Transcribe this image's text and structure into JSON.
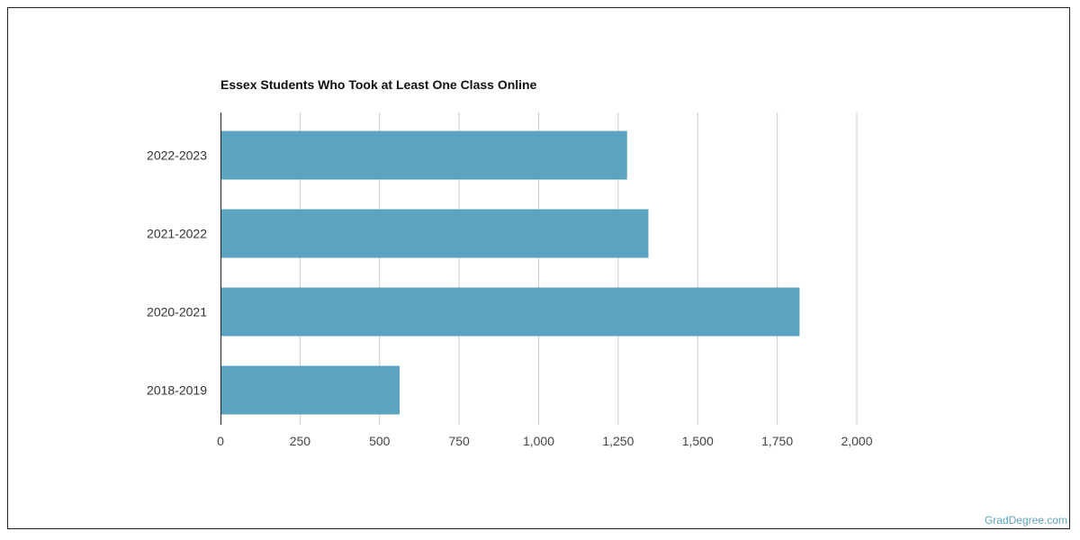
{
  "chart_data": {
    "type": "bar",
    "orientation": "horizontal",
    "title": "Essex Students Who Took at Least One Class Online",
    "xlabel": "",
    "ylabel": "",
    "categories": [
      "2022-2023",
      "2021-2022",
      "2020-2021",
      "2018-2019"
    ],
    "values": [
      1278,
      1345,
      1820,
      563
    ],
    "xlim": [
      0,
      2000
    ],
    "xticks": [
      0,
      250,
      500,
      750,
      1000,
      1250,
      1500,
      1750,
      2000
    ],
    "xtick_labels": [
      "0",
      "250",
      "500",
      "750",
      "1,000",
      "1,250",
      "1,500",
      "1,750",
      "2,000"
    ],
    "grid": true,
    "legend": "none",
    "bar_color": "#5ba3bf",
    "grid_color": "#cccccc"
  },
  "watermark": "GradDegree.com"
}
